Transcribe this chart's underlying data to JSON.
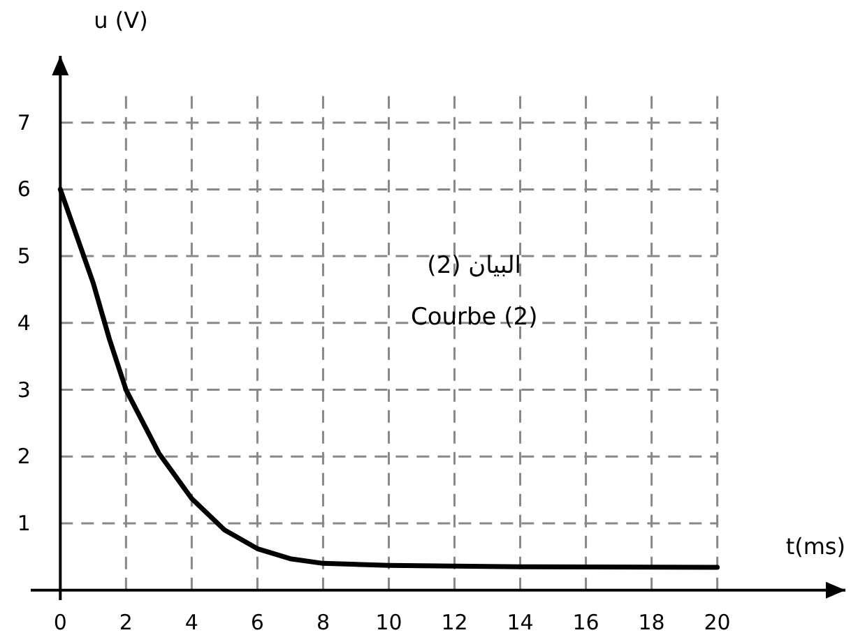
{
  "chart_data": {
    "type": "line",
    "xlabel": "t(ms)",
    "ylabel": "u (V)",
    "x": [
      0,
      0.5,
      1,
      1.5,
      2,
      3,
      4,
      5,
      6,
      7,
      8,
      10,
      14,
      20
    ],
    "series": [
      {
        "color": "#000000",
        "values": [
          6.0,
          5.3,
          4.6,
          3.75,
          3.0,
          2.05,
          1.37,
          0.9,
          0.62,
          0.47,
          0.4,
          0.37,
          0.35,
          0.34
        ]
      }
    ],
    "xlim": [
      -0.9,
      23.9
    ],
    "ylim": [
      -0.15,
      8
    ],
    "xticks": [
      0,
      2,
      4,
      6,
      8,
      10,
      12,
      14,
      16,
      18,
      20
    ],
    "yticks": [
      1,
      2,
      3,
      4,
      5,
      6,
      7
    ],
    "grid": true,
    "marker": "none",
    "line_style": "solid",
    "annotations": [
      "البيان (2)",
      "Courbe (2)"
    ]
  }
}
